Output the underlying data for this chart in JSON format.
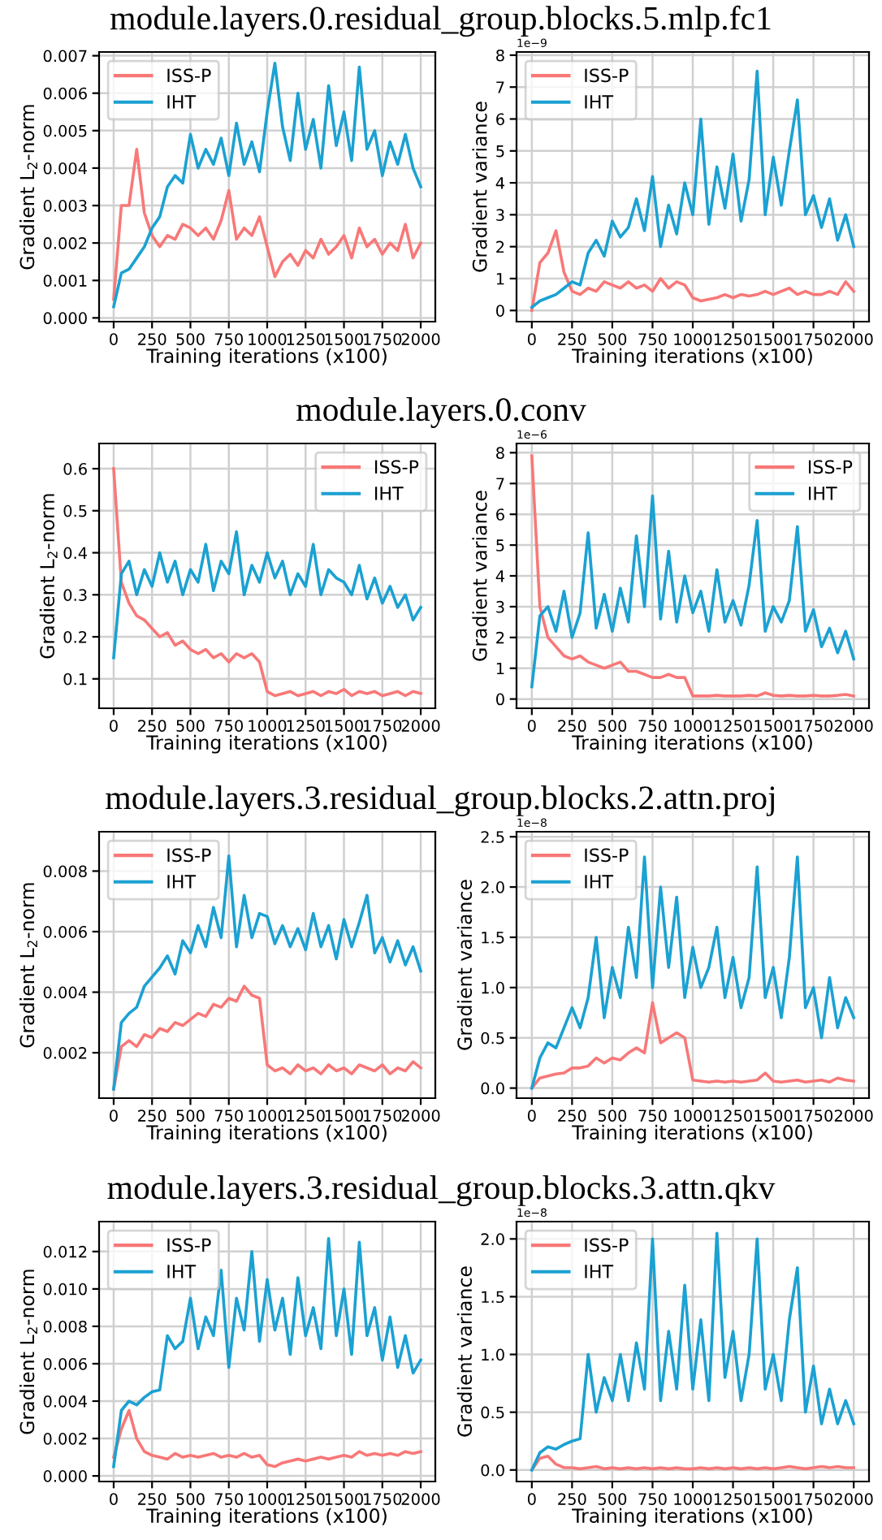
{
  "chart_data": [
    {
      "type": "line",
      "title": "module.layers.0.residual_group.blocks.5.mlp.fc1",
      "xlabel": "Training iterations (x100)",
      "ylabel": "Gradient L$_{2}$-norm",
      "x": [
        0,
        50,
        100,
        150,
        200,
        250,
        300,
        350,
        400,
        450,
        500,
        550,
        600,
        650,
        700,
        750,
        800,
        850,
        900,
        950,
        1000,
        1050,
        1100,
        1150,
        1200,
        1250,
        1300,
        1350,
        1400,
        1450,
        1500,
        1550,
        1600,
        1650,
        1700,
        1750,
        1800,
        1850,
        1900,
        1950,
        2000
      ],
      "series": [
        {
          "name": "ISS-P",
          "color": "#f87878",
          "values": [
            0.0005,
            0.003,
            0.003,
            0.0045,
            0.0028,
            0.0022,
            0.0019,
            0.0022,
            0.0021,
            0.0025,
            0.0024,
            0.0022,
            0.0024,
            0.0021,
            0.0026,
            0.0034,
            0.0021,
            0.0024,
            0.0022,
            0.0027,
            0.0019,
            0.0011,
            0.0015,
            0.0017,
            0.0014,
            0.0018,
            0.0016,
            0.0021,
            0.0017,
            0.0019,
            0.0022,
            0.0016,
            0.0024,
            0.0019,
            0.0021,
            0.0017,
            0.002,
            0.0018,
            0.0025,
            0.0016,
            0.002
          ]
        },
        {
          "name": "IHT",
          "color": "#1ba1d2",
          "values": [
            0.0003,
            0.0012,
            0.0013,
            0.0016,
            0.0019,
            0.0024,
            0.0027,
            0.0035,
            0.0038,
            0.0036,
            0.0049,
            0.004,
            0.0045,
            0.0041,
            0.0048,
            0.0038,
            0.0052,
            0.0041,
            0.0047,
            0.0039,
            0.0055,
            0.0068,
            0.0051,
            0.0042,
            0.006,
            0.0045,
            0.0053,
            0.004,
            0.0062,
            0.0046,
            0.0055,
            0.0042,
            0.0067,
            0.0045,
            0.005,
            0.0038,
            0.0047,
            0.0041,
            0.0049,
            0.004,
            0.0035
          ]
        }
      ],
      "xlim": [
        -95,
        2095
      ],
      "xticks": [
        0,
        250,
        500,
        750,
        1000,
        1250,
        1500,
        1750,
        2000
      ],
      "ylim": [
        -0.0001,
        0.0071
      ],
      "yticks": [
        {
          "value": 0,
          "label": "0.000"
        },
        0.001,
        0.002,
        0.003,
        0.004,
        0.005,
        0.006,
        0.007
      ],
      "grid": true,
      "legend": "top left"
    },
    {
      "type": "line",
      "xlabel": "Training iterations (x100)",
      "ylabel": "Gradient variance",
      "annotations": [
        "1e−9"
      ],
      "x": [
        0,
        50,
        100,
        150,
        200,
        250,
        300,
        350,
        400,
        450,
        500,
        550,
        600,
        650,
        700,
        750,
        800,
        850,
        900,
        950,
        1000,
        1050,
        1100,
        1150,
        1200,
        1250,
        1300,
        1350,
        1400,
        1450,
        1500,
        1550,
        1600,
        1650,
        1700,
        1750,
        1800,
        1850,
        1900,
        1950,
        2000
      ],
      "series": [
        {
          "name": "ISS-P",
          "color": "#f87878",
          "values": [
            0,
            1.5,
            1.8,
            2.5,
            1.2,
            0.6,
            0.5,
            0.7,
            0.6,
            0.9,
            0.8,
            0.7,
            0.9,
            0.7,
            0.8,
            0.6,
            1.0,
            0.7,
            0.9,
            0.8,
            0.4,
            0.3,
            0.35,
            0.4,
            0.5,
            0.4,
            0.5,
            0.45,
            0.5,
            0.6,
            0.5,
            0.6,
            0.7,
            0.5,
            0.6,
            0.5,
            0.5,
            0.6,
            0.5,
            0.9,
            0.6
          ]
        },
        {
          "name": "IHT",
          "color": "#1ba1d2",
          "values": [
            0.1,
            0.3,
            0.4,
            0.5,
            0.7,
            0.9,
            0.8,
            1.8,
            2.2,
            1.7,
            2.8,
            2.3,
            2.6,
            3.5,
            2.5,
            4.2,
            2.0,
            3.3,
            2.4,
            4.0,
            3.0,
            6.0,
            2.7,
            4.5,
            3.2,
            4.9,
            2.8,
            4.1,
            7.5,
            3.0,
            4.8,
            3.3,
            5.0,
            6.6,
            3.0,
            3.6,
            2.6,
            3.5,
            2.2,
            3.0,
            2.0
          ]
        }
      ],
      "xlim": [
        -95,
        2095
      ],
      "xticks": [
        0,
        250,
        500,
        750,
        1000,
        1250,
        1500,
        1750,
        2000
      ],
      "ylim": [
        -0.35,
        8.1
      ],
      "yticks": [
        0,
        1,
        2,
        3,
        4,
        5,
        6,
        7,
        8
      ],
      "grid": true,
      "legend": "top left"
    },
    {
      "type": "line",
      "title": "module.layers.0.conv",
      "xlabel": "Training iterations (x100)",
      "ylabel": "Gradient L$_{2}$-norm",
      "x": [
        0,
        50,
        100,
        150,
        200,
        250,
        300,
        350,
        400,
        450,
        500,
        550,
        600,
        650,
        700,
        750,
        800,
        850,
        900,
        950,
        1000,
        1050,
        1100,
        1150,
        1200,
        1250,
        1300,
        1350,
        1400,
        1450,
        1500,
        1550,
        1600,
        1650,
        1700,
        1750,
        1800,
        1850,
        1900,
        1950,
        2000
      ],
      "series": [
        {
          "name": "ISS-P",
          "color": "#f87878",
          "values": [
            0.6,
            0.33,
            0.28,
            0.25,
            0.24,
            0.22,
            0.2,
            0.21,
            0.18,
            0.19,
            0.17,
            0.16,
            0.17,
            0.15,
            0.16,
            0.14,
            0.16,
            0.15,
            0.16,
            0.14,
            0.07,
            0.06,
            0.065,
            0.07,
            0.06,
            0.065,
            0.07,
            0.06,
            0.07,
            0.065,
            0.075,
            0.06,
            0.07,
            0.065,
            0.07,
            0.06,
            0.065,
            0.07,
            0.06,
            0.07,
            0.065
          ]
        },
        {
          "name": "IHT",
          "color": "#1ba1d2",
          "values": [
            0.15,
            0.35,
            0.38,
            0.3,
            0.36,
            0.32,
            0.4,
            0.33,
            0.38,
            0.3,
            0.36,
            0.33,
            0.42,
            0.31,
            0.38,
            0.35,
            0.45,
            0.3,
            0.37,
            0.33,
            0.4,
            0.34,
            0.38,
            0.3,
            0.35,
            0.32,
            0.42,
            0.3,
            0.36,
            0.34,
            0.33,
            0.3,
            0.37,
            0.29,
            0.34,
            0.28,
            0.32,
            0.27,
            0.3,
            0.24,
            0.27
          ]
        }
      ],
      "xlim": [
        -95,
        2095
      ],
      "xticks": [
        0,
        250,
        500,
        750,
        1000,
        1250,
        1500,
        1750,
        2000
      ],
      "ylim": [
        0.03,
        0.66
      ],
      "yticks": [
        0.1,
        0.2,
        0.3,
        0.4,
        0.5,
        0.6
      ],
      "grid": true,
      "legend": "top right"
    },
    {
      "type": "line",
      "xlabel": "Training iterations (x100)",
      "ylabel": "Gradient variance",
      "annotations": [
        "1e−6"
      ],
      "x": [
        0,
        50,
        100,
        150,
        200,
        250,
        300,
        350,
        400,
        450,
        500,
        550,
        600,
        650,
        700,
        750,
        800,
        850,
        900,
        950,
        1000,
        1050,
        1100,
        1150,
        1200,
        1250,
        1300,
        1350,
        1400,
        1450,
        1500,
        1550,
        1600,
        1650,
        1700,
        1750,
        1800,
        1850,
        1900,
        1950,
        2000
      ],
      "series": [
        {
          "name": "ISS-P",
          "color": "#f87878",
          "values": [
            7.9,
            3.0,
            2.0,
            1.7,
            1.4,
            1.3,
            1.4,
            1.2,
            1.1,
            1.0,
            1.1,
            1.2,
            0.9,
            0.9,
            0.8,
            0.7,
            0.7,
            0.8,
            0.7,
            0.7,
            0.1,
            0.1,
            0.1,
            0.12,
            0.1,
            0.1,
            0.1,
            0.12,
            0.1,
            0.2,
            0.12,
            0.1,
            0.12,
            0.1,
            0.1,
            0.12,
            0.1,
            0.1,
            0.12,
            0.15,
            0.1
          ]
        },
        {
          "name": "IHT",
          "color": "#1ba1d2",
          "values": [
            0.4,
            2.7,
            3.0,
            2.2,
            3.5,
            2.0,
            2.8,
            5.4,
            2.3,
            3.4,
            2.2,
            3.6,
            2.5,
            5.3,
            3.0,
            6.6,
            2.6,
            4.8,
            2.5,
            4.0,
            2.8,
            3.5,
            2.2,
            4.2,
            2.5,
            3.2,
            2.4,
            3.7,
            5.8,
            2.2,
            3.0,
            2.5,
            3.2,
            5.6,
            2.2,
            2.9,
            1.7,
            2.3,
            1.5,
            2.2,
            1.3
          ]
        }
      ],
      "xlim": [
        -95,
        2095
      ],
      "xticks": [
        0,
        250,
        500,
        750,
        1000,
        1250,
        1500,
        1750,
        2000
      ],
      "ylim": [
        -0.3,
        8.3
      ],
      "yticks": [
        0,
        1,
        2,
        3,
        4,
        5,
        6,
        7,
        8
      ],
      "grid": true,
      "legend": "top right"
    },
    {
      "type": "line",
      "title": "module.layers.3.residual_group.blocks.2.attn.proj",
      "xlabel": "Training iterations (x100)",
      "ylabel": "Gradient L$_{2}$-norm",
      "x": [
        0,
        50,
        100,
        150,
        200,
        250,
        300,
        350,
        400,
        450,
        500,
        550,
        600,
        650,
        700,
        750,
        800,
        850,
        900,
        950,
        1000,
        1050,
        1100,
        1150,
        1200,
        1250,
        1300,
        1350,
        1400,
        1450,
        1500,
        1550,
        1600,
        1650,
        1700,
        1750,
        1800,
        1850,
        1900,
        1950,
        2000
      ],
      "series": [
        {
          "name": "ISS-P",
          "color": "#f87878",
          "values": [
            0.0008,
            0.0022,
            0.0024,
            0.0022,
            0.0026,
            0.0025,
            0.0028,
            0.0027,
            0.003,
            0.0029,
            0.0031,
            0.0033,
            0.0032,
            0.0036,
            0.0035,
            0.0038,
            0.0037,
            0.0042,
            0.0039,
            0.0038,
            0.0016,
            0.0014,
            0.0015,
            0.0013,
            0.0016,
            0.0014,
            0.0015,
            0.0013,
            0.0016,
            0.0014,
            0.0015,
            0.0013,
            0.0016,
            0.0015,
            0.0014,
            0.0016,
            0.0013,
            0.0015,
            0.0014,
            0.0017,
            0.0015
          ]
        },
        {
          "name": "IHT",
          "color": "#1ba1d2",
          "values": [
            0.0008,
            0.003,
            0.0033,
            0.0035,
            0.0042,
            0.0045,
            0.0048,
            0.0052,
            0.0046,
            0.0057,
            0.0053,
            0.0062,
            0.0055,
            0.0068,
            0.0058,
            0.0085,
            0.0055,
            0.0072,
            0.0058,
            0.0066,
            0.0065,
            0.0056,
            0.0062,
            0.0055,
            0.0061,
            0.0054,
            0.0066,
            0.0055,
            0.0062,
            0.0051,
            0.0064,
            0.0055,
            0.0063,
            0.0072,
            0.0053,
            0.0058,
            0.005,
            0.0057,
            0.0049,
            0.0055,
            0.0047
          ]
        }
      ],
      "xlim": [
        -95,
        2095
      ],
      "xticks": [
        0,
        250,
        500,
        750,
        1000,
        1250,
        1500,
        1750,
        2000
      ],
      "ylim": [
        0.0005,
        0.0093
      ],
      "yticks": [
        0.002,
        0.004,
        0.006,
        0.008
      ],
      "grid": true,
      "legend": "top left"
    },
    {
      "type": "line",
      "xlabel": "Training iterations (x100)",
      "ylabel": "Gradient variance",
      "annotations": [
        "1e−8"
      ],
      "x": [
        0,
        50,
        100,
        150,
        200,
        250,
        300,
        350,
        400,
        450,
        500,
        550,
        600,
        650,
        700,
        750,
        800,
        850,
        900,
        950,
        1000,
        1050,
        1100,
        1150,
        1200,
        1250,
        1300,
        1350,
        1400,
        1450,
        1500,
        1550,
        1600,
        1650,
        1700,
        1750,
        1800,
        1850,
        1900,
        1950,
        2000
      ],
      "series": [
        {
          "name": "ISS-P",
          "color": "#f87878",
          "values": [
            0,
            0.1,
            0.12,
            0.14,
            0.15,
            0.2,
            0.2,
            0.22,
            0.3,
            0.25,
            0.3,
            0.28,
            0.35,
            0.4,
            0.35,
            0.85,
            0.45,
            0.5,
            0.55,
            0.5,
            0.08,
            0.07,
            0.06,
            0.07,
            0.06,
            0.07,
            0.06,
            0.07,
            0.08,
            0.15,
            0.07,
            0.06,
            0.07,
            0.08,
            0.06,
            0.07,
            0.08,
            0.06,
            0.1,
            0.08,
            0.07
          ]
        },
        {
          "name": "IHT",
          "color": "#1ba1d2",
          "values": [
            0,
            0.3,
            0.45,
            0.4,
            0.6,
            0.8,
            0.6,
            0.9,
            1.5,
            0.7,
            1.2,
            0.9,
            1.6,
            1.1,
            2.3,
            1.0,
            2.0,
            1.2,
            1.9,
            0.9,
            1.4,
            1.0,
            1.2,
            1.6,
            0.9,
            1.3,
            0.8,
            1.1,
            2.2,
            0.9,
            1.2,
            0.7,
            1.3,
            2.3,
            0.8,
            1.0,
            0.5,
            1.1,
            0.6,
            0.9,
            0.7
          ]
        }
      ],
      "xlim": [
        -95,
        2095
      ],
      "xticks": [
        0,
        250,
        500,
        750,
        1000,
        1250,
        1500,
        1750,
        2000
      ],
      "ylim": [
        -0.1,
        2.55
      ],
      "yticks": [
        {
          "value": 0,
          "label": "0.0"
        },
        0.5,
        {
          "value": 1,
          "label": "1.0"
        },
        1.5,
        {
          "value": 2,
          "label": "2.0"
        },
        2.5
      ],
      "grid": true,
      "legend": "top left"
    },
    {
      "type": "line",
      "title": "module.layers.3.residual_group.blocks.3.attn.qkv",
      "xlabel": "Training iterations (x100)",
      "ylabel": "Gradient L$_{2}$-norm",
      "x": [
        0,
        50,
        100,
        150,
        200,
        250,
        300,
        350,
        400,
        450,
        500,
        550,
        600,
        650,
        700,
        750,
        800,
        850,
        900,
        950,
        1000,
        1050,
        1100,
        1150,
        1200,
        1250,
        1300,
        1350,
        1400,
        1450,
        1500,
        1550,
        1600,
        1650,
        1700,
        1750,
        1800,
        1850,
        1900,
        1950,
        2000
      ],
      "series": [
        {
          "name": "ISS-P",
          "color": "#f87878",
          "values": [
            0.001,
            0.0025,
            0.0035,
            0.002,
            0.0013,
            0.0011,
            0.001,
            0.0009,
            0.0012,
            0.001,
            0.0011,
            0.001,
            0.0011,
            0.0012,
            0.001,
            0.0011,
            0.001,
            0.0012,
            0.001,
            0.0011,
            0.0006,
            0.0005,
            0.0007,
            0.0008,
            0.0009,
            0.0008,
            0.0009,
            0.001,
            0.0009,
            0.001,
            0.0011,
            0.001,
            0.0013,
            0.0011,
            0.0012,
            0.0011,
            0.0012,
            0.0011,
            0.0013,
            0.0012,
            0.0013
          ]
        },
        {
          "name": "IHT",
          "color": "#1ba1d2",
          "values": [
            0.0005,
            0.0035,
            0.004,
            0.0038,
            0.0042,
            0.0045,
            0.0046,
            0.0075,
            0.0068,
            0.0072,
            0.0095,
            0.0068,
            0.0085,
            0.0075,
            0.011,
            0.0058,
            0.0095,
            0.0078,
            0.012,
            0.0072,
            0.0105,
            0.0078,
            0.0095,
            0.0065,
            0.0106,
            0.0075,
            0.009,
            0.0068,
            0.0127,
            0.0075,
            0.01,
            0.0065,
            0.0125,
            0.0075,
            0.009,
            0.0062,
            0.0085,
            0.0058,
            0.0075,
            0.0055,
            0.0062
          ]
        }
      ],
      "xlim": [
        -95,
        2095
      ],
      "xticks": [
        0,
        250,
        500,
        750,
        1000,
        1250,
        1500,
        1750,
        2000
      ],
      "ylim": [
        -0.0003,
        0.0136
      ],
      "yticks": [
        {
          "value": 0,
          "label": "0.000"
        },
        0.002,
        0.004,
        0.006,
        0.008,
        {
          "value": 0.01,
          "label": "0.010"
        },
        0.012
      ],
      "grid": true,
      "legend": "top left"
    },
    {
      "type": "line",
      "xlabel": "Training iterations (x100)",
      "ylabel": "Gradient variance",
      "annotations": [
        "1e−8"
      ],
      "x": [
        0,
        50,
        100,
        150,
        200,
        250,
        300,
        350,
        400,
        450,
        500,
        550,
        600,
        650,
        700,
        750,
        800,
        850,
        900,
        950,
        1000,
        1050,
        1100,
        1150,
        1200,
        1250,
        1300,
        1350,
        1400,
        1450,
        1500,
        1550,
        1600,
        1650,
        1700,
        1750,
        1800,
        1850,
        1900,
        1950,
        2000
      ],
      "series": [
        {
          "name": "ISS-P",
          "color": "#f87878",
          "values": [
            0,
            0.1,
            0.12,
            0.05,
            0.02,
            0.02,
            0.01,
            0.02,
            0.03,
            0.01,
            0.02,
            0.01,
            0.02,
            0.01,
            0.02,
            0.01,
            0.02,
            0.01,
            0.02,
            0.01,
            0.01,
            0.02,
            0.01,
            0.02,
            0.01,
            0.02,
            0.01,
            0.02,
            0.01,
            0.02,
            0.01,
            0.02,
            0.03,
            0.02,
            0.01,
            0.02,
            0.03,
            0.02,
            0.03,
            0.02,
            0.02
          ]
        },
        {
          "name": "IHT",
          "color": "#1ba1d2",
          "values": [
            0,
            0.15,
            0.2,
            0.18,
            0.22,
            0.25,
            0.27,
            1.0,
            0.5,
            0.8,
            0.6,
            1.0,
            0.6,
            1.1,
            0.7,
            2.0,
            0.6,
            1.2,
            0.7,
            1.6,
            0.7,
            1.3,
            0.6,
            2.05,
            0.8,
            1.2,
            0.6,
            1.0,
            2.0,
            0.7,
            1.0,
            0.6,
            1.3,
            1.75,
            0.5,
            0.9,
            0.4,
            0.7,
            0.4,
            0.6,
            0.4
          ]
        }
      ],
      "xlim": [
        -95,
        2095
      ],
      "xticks": [
        0,
        250,
        500,
        750,
        1000,
        1250,
        1500,
        1750,
        2000
      ],
      "ylim": [
        -0.1,
        2.15
      ],
      "yticks": [
        {
          "value": 0,
          "label": "0.0"
        },
        0.5,
        {
          "value": 1,
          "label": "1.0"
        },
        1.5,
        {
          "value": 2,
          "label": "2.0"
        }
      ],
      "grid": true,
      "legend": "top left"
    }
  ]
}
